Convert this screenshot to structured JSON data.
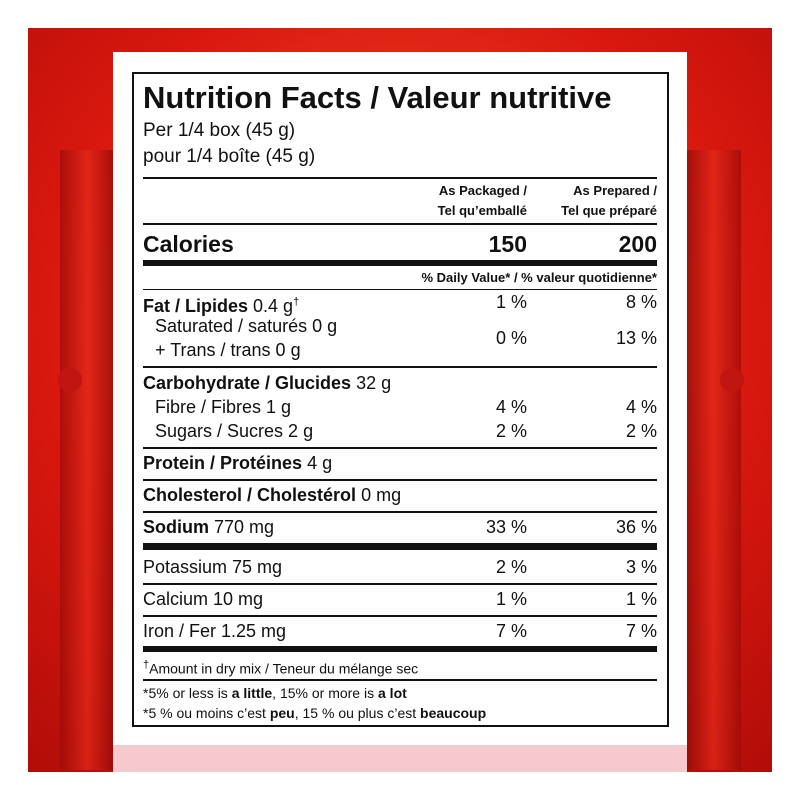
{
  "title": "Nutrition Facts / Valeur nutritive",
  "serving": [
    "Per 1/4 box (45 g)",
    "pour 1/4 boîte (45 g)"
  ],
  "column_headers": [
    [
      "As Packaged /",
      "Tel qu’emballé"
    ],
    [
      "As Prepared /",
      "Tel que préparé"
    ]
  ],
  "calories": {
    "label": "Calories",
    "packaged": "150",
    "prepared": "200"
  },
  "daily_value_header": "% Daily Value* / % valeur quotidienne*",
  "rows": [
    {
      "name": "Fat / Lipides",
      "amount": "0.4 g",
      "note_mark": "†",
      "packaged": "1 %",
      "prepared": "8 %"
    },
    {
      "name": "Saturated / saturés 0 g",
      "name_line2": "+ Trans / trans 0 g",
      "packaged": "0 %",
      "prepared": "13 %"
    },
    {
      "name": "Carbohydrate / Glucides",
      "amount": "32 g"
    },
    {
      "name": "Fibre / Fibres 1 g",
      "packaged": "4 %",
      "prepared": "4 %"
    },
    {
      "name": "Sugars / Sucres 2 g",
      "packaged": "2 %",
      "prepared": "2 %"
    },
    {
      "name": "Protein / Protéines",
      "amount": "4 g"
    },
    {
      "name": "Cholesterol / Cholestérol",
      "amount": "0 mg"
    },
    {
      "name": "Sodium",
      "amount": "770 mg",
      "packaged": "33 %",
      "prepared": "36 %"
    },
    {
      "name": "Potassium 75 mg",
      "packaged": "2 %",
      "prepared": "3 %"
    },
    {
      "name": "Calcium 10 mg",
      "packaged": "1 %",
      "prepared": "1 %"
    },
    {
      "name": "Iron / Fer 1.25 mg",
      "packaged": "7 %",
      "prepared": "7 %"
    }
  ],
  "footnotes": {
    "dagger": {
      "mark": "†",
      "text": "Amount in dry mix / Teneur du mélange sec"
    },
    "english": [
      "*5% or less is ",
      "a little",
      ", 15% or more is ",
      "a lot"
    ],
    "french": [
      "*5 % ou moins c’est ",
      "peu",
      ", 15 % ou plus c’est ",
      "beaucoup"
    ]
  }
}
